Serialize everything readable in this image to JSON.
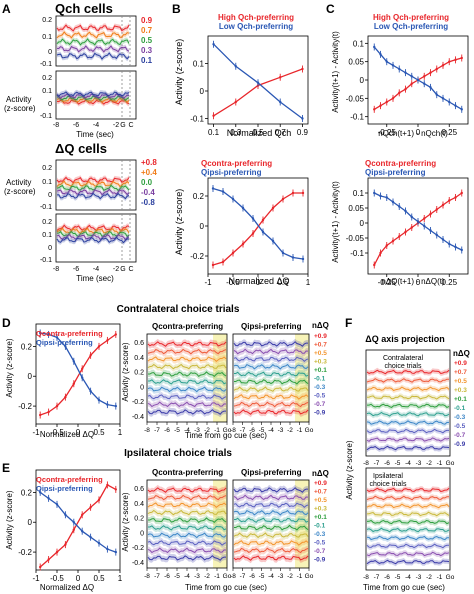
{
  "figure": {
    "panel_letters": [
      "A",
      "B",
      "C",
      "D",
      "E",
      "F"
    ],
    "section_titles": {
      "qch_cells": "Qch cells",
      "dq_cells": "ΔQ cells",
      "contra": "Contralateral choice trials",
      "ipsi": "Ipsilateral choice trials",
      "dq_axis": "ΔQ axis projection"
    },
    "labels": {
      "activity": "Activity",
      "activity_z": "Activity (z-score)",
      "z_score": "(z-score)",
      "time_sec": "Time (sec)",
      "time_go": "Time from go cue (sec)",
      "normalized_qch": "Normalized Qch",
      "normalized_dq": "Normalized ΔQ",
      "c_ylabel": "Activity(t+1) - Activity(t)",
      "c_top_xlabel": "nQch(t+1) - nQch(t)",
      "c_bot_xlabel": "nΔQ(t+1) - nΔQ(t)",
      "g": "G",
      "c": "C",
      "go": "Go",
      "ndq": "nΔQ",
      "contralateral_choice_trials": "Contralateral choice trials",
      "ipsilateral_choice_trials": "Ipsilateral choice trials"
    },
    "legends": {
      "high_qch": "High Qch-preferring",
      "low_qch": "Low Qch-preferring",
      "qcontra": "Qcontra-preferring",
      "qipsi": "Qipsi-preferring"
    },
    "colors": {
      "red": "#e8262b",
      "blue": "#2a57b4",
      "qch_levels": [
        "#e8262b",
        "#f07d1a",
        "#2e9e3e",
        "#7a3fa0",
        "#2a3f9e"
      ],
      "dq_levels_a": [
        "#e8262b",
        "#f07d1a",
        "#2e9e3e",
        "#7a3fa0",
        "#2a3f9e"
      ],
      "dq_levels_d": [
        "#e8262b",
        "#ee5a3a",
        "#f3952e",
        "#c9b83a",
        "#2e9e3e",
        "#2ea08f",
        "#3c86c7",
        "#5a5fc0",
        "#8a4fb0",
        "#3a3aa8"
      ],
      "highlight": "#f7f3b8"
    },
    "qch_levels": [
      "0.9",
      "0.7",
      "0.5",
      "0.3",
      "0.1"
    ],
    "dq_levels_a": [
      "+0.8",
      "+0.4",
      "0.0",
      "-0.4",
      "-0.8"
    ],
    "dq_levels_d": [
      "+0.9",
      "+0.7",
      "+0.5",
      "+0.3",
      "+0.1",
      "-0.1",
      "-0.3",
      "-0.5",
      "-0.7",
      "-0.9"
    ]
  },
  "chart_data": [
    {
      "panel": "B-top",
      "type": "line",
      "xlabel": "Normalized Qch",
      "ylabel": "Activity (z-score)",
      "x": [
        0.1,
        0.3,
        0.5,
        0.7,
        0.9
      ],
      "xlim": [
        0.05,
        0.95
      ],
      "ylim": [
        -0.12,
        0.2
      ],
      "series": [
        {
          "name": "High Qch-preferring",
          "values": [
            -0.09,
            -0.04,
            0.02,
            0.05,
            0.08
          ]
        },
        {
          "name": "Low Qch-preferring",
          "values": [
            0.17,
            0.09,
            0.03,
            -0.04,
            -0.1
          ]
        }
      ]
    },
    {
      "panel": "B-bottom",
      "type": "line",
      "xlabel": "Normalized ΔQ",
      "ylabel": "Activity (z-score)",
      "x": [
        -0.9,
        -0.7,
        -0.5,
        -0.3,
        -0.1,
        0.1,
        0.3,
        0.5,
        0.7,
        0.9
      ],
      "xlim": [
        -1.0,
        1.0
      ],
      "ylim": [
        -0.32,
        0.32
      ],
      "series": [
        {
          "name": "Qcontra-preferring",
          "values": [
            -0.26,
            -0.24,
            -0.18,
            -0.12,
            -0.05,
            0.04,
            0.12,
            0.18,
            0.22,
            0.22
          ]
        },
        {
          "name": "Qipsi-preferring",
          "values": [
            0.25,
            0.23,
            0.18,
            0.12,
            0.05,
            -0.04,
            -0.1,
            -0.18,
            -0.21,
            -0.22
          ]
        }
      ]
    },
    {
      "panel": "C-top",
      "type": "line",
      "xlabel": "nQch(t+1) - nQch(t)",
      "ylabel": "Activity(t+1) - Activity(t)",
      "x": [
        -0.35,
        -0.3,
        -0.25,
        -0.2,
        -0.15,
        -0.1,
        -0.05,
        0.0,
        0.05,
        0.1,
        0.15,
        0.2,
        0.25,
        0.3,
        0.35
      ],
      "xlim": [
        -0.4,
        0.4
      ],
      "ylim": [
        -0.12,
        0.12
      ],
      "series": [
        {
          "name": "High Qch-preferring",
          "values": [
            -0.08,
            -0.07,
            -0.06,
            -0.05,
            -0.035,
            -0.025,
            -0.01,
            0.0,
            0.01,
            0.02,
            0.03,
            0.04,
            0.05,
            0.055,
            0.06
          ]
        },
        {
          "name": "Low Qch-preferring",
          "values": [
            0.09,
            0.07,
            0.05,
            0.04,
            0.03,
            0.02,
            0.01,
            0.0,
            -0.01,
            -0.02,
            -0.04,
            -0.05,
            -0.06,
            -0.07,
            -0.08
          ]
        }
      ]
    },
    {
      "panel": "C-bottom",
      "type": "line",
      "xlabel": "nΔQ(t+1) - nΔQ(t)",
      "ylabel": "Activity(t+1) - Activity(t)",
      "x": [
        -0.35,
        -0.3,
        -0.25,
        -0.2,
        -0.15,
        -0.1,
        -0.05,
        0.0,
        0.05,
        0.1,
        0.15,
        0.2,
        0.25,
        0.3,
        0.35
      ],
      "xlim": [
        -0.4,
        0.4
      ],
      "ylim": [
        -0.17,
        0.15
      ],
      "series": [
        {
          "name": "Qcontra-preferring",
          "values": [
            -0.14,
            -0.1,
            -0.075,
            -0.06,
            -0.045,
            -0.03,
            -0.015,
            0.0,
            0.015,
            0.03,
            0.045,
            0.06,
            0.075,
            0.085,
            0.1
          ]
        },
        {
          "name": "Qipsi-preferring",
          "values": [
            0.1,
            0.09,
            0.085,
            0.07,
            0.055,
            0.04,
            0.02,
            0.005,
            -0.01,
            -0.025,
            -0.04,
            -0.055,
            -0.07,
            -0.08,
            -0.09
          ]
        }
      ]
    },
    {
      "panel": "D-left",
      "type": "line",
      "xlabel": "Normalized ΔQ",
      "ylabel": "Activity (z-score)",
      "x": [
        -0.9,
        -0.7,
        -0.5,
        -0.3,
        -0.1,
        0.1,
        0.3,
        0.5,
        0.7,
        0.9
      ],
      "xlim": [
        -1.0,
        1.0
      ],
      "ylim": [
        -0.32,
        0.35
      ],
      "series": [
        {
          "name": "Qcontra-preferring",
          "values": [
            -0.26,
            -0.24,
            -0.2,
            -0.14,
            -0.05,
            0.05,
            0.14,
            0.2,
            0.24,
            0.28
          ]
        },
        {
          "name": "Qipsi-preferring",
          "values": [
            0.29,
            0.28,
            0.26,
            0.2,
            0.1,
            -0.01,
            -0.1,
            -0.16,
            -0.19,
            -0.2
          ]
        }
      ]
    },
    {
      "panel": "E-left",
      "type": "line",
      "xlabel": "Normalized ΔQ",
      "ylabel": "Activity (z-score)",
      "x": [
        -0.9,
        -0.7,
        -0.5,
        -0.3,
        -0.1,
        0.1,
        0.3,
        0.5,
        0.7,
        0.9
      ],
      "xlim": [
        -1.0,
        1.0
      ],
      "ylim": [
        -0.32,
        0.35
      ],
      "series": [
        {
          "name": "Qcontra-preferring",
          "values": [
            -0.3,
            -0.25,
            -0.2,
            -0.15,
            -0.05,
            0.05,
            0.1,
            0.15,
            0.25,
            0.22
          ]
        },
        {
          "name": "Qipsi-preferring",
          "values": [
            0.2,
            0.16,
            0.12,
            0.05,
            0.0,
            -0.06,
            -0.1,
            -0.14,
            -0.18,
            -0.2
          ]
        }
      ]
    }
  ]
}
